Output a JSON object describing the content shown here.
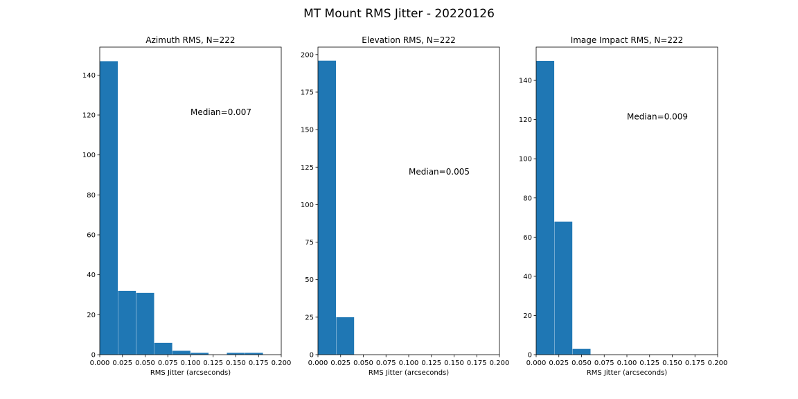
{
  "figure": {
    "title": "MT Mount RMS Jitter - 20220126"
  },
  "chart_data": [
    {
      "type": "histogram",
      "title": "Azimuth RMS, N=222",
      "xlabel": "RMS Jitter (arcseconds)",
      "ylabel": "",
      "xlim": [
        0,
        0.2
      ],
      "ylim": [
        0,
        154
      ],
      "xticks": [
        "0.000",
        "0.025",
        "0.050",
        "0.075",
        "0.100",
        "0.125",
        "0.150",
        "0.175",
        "0.200"
      ],
      "yticks": [
        "0",
        "20",
        "40",
        "60",
        "80",
        "100",
        "120",
        "140"
      ],
      "bin_edges": [
        0.0,
        0.02,
        0.04,
        0.06,
        0.08,
        0.1,
        0.12,
        0.14,
        0.16,
        0.18
      ],
      "counts": [
        147,
        32,
        31,
        6,
        2,
        1,
        0,
        1,
        1
      ],
      "annotation": {
        "text": "Median=0.007",
        "x": 0.1,
        "y": 120
      },
      "bar_color": "#1f77b4"
    },
    {
      "type": "histogram",
      "title": "Elevation RMS, N=222",
      "xlabel": "RMS Jitter (arcseconds)",
      "ylabel": "",
      "xlim": [
        0,
        0.2
      ],
      "ylim": [
        0,
        205
      ],
      "xticks": [
        "0.000",
        "0.025",
        "0.050",
        "0.075",
        "0.100",
        "0.125",
        "0.150",
        "0.175",
        "0.200"
      ],
      "yticks": [
        "0",
        "25",
        "50",
        "75",
        "100",
        "125",
        "150",
        "175",
        "200"
      ],
      "bin_edges": [
        0.0,
        0.02,
        0.04
      ],
      "counts": [
        196,
        25
      ],
      "annotation": {
        "text": "Median=0.005",
        "x": 0.1,
        "y": 120
      },
      "bar_color": "#1f77b4"
    },
    {
      "type": "histogram",
      "title": "Image Impact RMS, N=222",
      "xlabel": "RMS Jitter (arcseconds)",
      "ylabel": "",
      "xlim": [
        0,
        0.2
      ],
      "ylim": [
        0,
        157
      ],
      "xticks": [
        "0.000",
        "0.025",
        "0.050",
        "0.075",
        "0.100",
        "0.125",
        "0.150",
        "0.175",
        "0.200"
      ],
      "yticks": [
        "0",
        "20",
        "40",
        "60",
        "80",
        "100",
        "120",
        "140"
      ],
      "bin_edges": [
        0.0,
        0.02,
        0.04,
        0.06
      ],
      "counts": [
        150,
        68,
        3
      ],
      "annotation": {
        "text": "Median=0.009",
        "x": 0.1,
        "y": 120
      },
      "bar_color": "#1f77b4"
    }
  ]
}
